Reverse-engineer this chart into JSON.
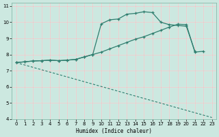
{
  "background_color": "#cce8e0",
  "grid_color_white": "#ffffff",
  "grid_color_red": "#e8c8c8",
  "line_color": "#2e7d6e",
  "xlabel": "Humidex (Indice chaleur)",
  "xlim": [
    -0.5,
    23.5
  ],
  "ylim": [
    4,
    11.2
  ],
  "xticks": [
    0,
    1,
    2,
    3,
    4,
    5,
    6,
    7,
    8,
    9,
    10,
    11,
    12,
    13,
    14,
    15,
    16,
    17,
    18,
    19,
    20,
    21,
    22,
    23
  ],
  "yticks": [
    4,
    5,
    6,
    7,
    8,
    9,
    10,
    11
  ],
  "curve1_x": [
    0,
    1,
    2,
    3,
    4,
    5,
    6,
    7,
    8,
    9,
    10,
    11,
    12,
    13,
    14,
    15,
    16,
    17,
    18,
    19,
    20,
    21
  ],
  "curve1_y": [
    7.5,
    7.55,
    7.6,
    7.62,
    7.65,
    7.62,
    7.65,
    7.7,
    7.85,
    8.0,
    9.9,
    10.15,
    10.2,
    10.5,
    10.55,
    10.65,
    10.6,
    10.0,
    9.85,
    9.8,
    9.75,
    8.2
  ],
  "curve2_x": [
    0,
    1,
    2,
    3,
    4,
    5,
    6,
    7,
    8,
    9,
    10,
    11,
    12,
    13,
    14,
    15,
    16,
    17,
    18,
    19,
    20,
    21,
    22
  ],
  "curve2_y": [
    7.5,
    7.55,
    7.6,
    7.62,
    7.65,
    7.62,
    7.65,
    7.7,
    7.85,
    8.0,
    8.15,
    8.35,
    8.55,
    8.75,
    8.95,
    9.1,
    9.3,
    9.5,
    9.7,
    9.88,
    9.85,
    8.15,
    8.2
  ],
  "curve3_x": [
    0,
    23
  ],
  "curve3_y": [
    7.5,
    4.1
  ]
}
